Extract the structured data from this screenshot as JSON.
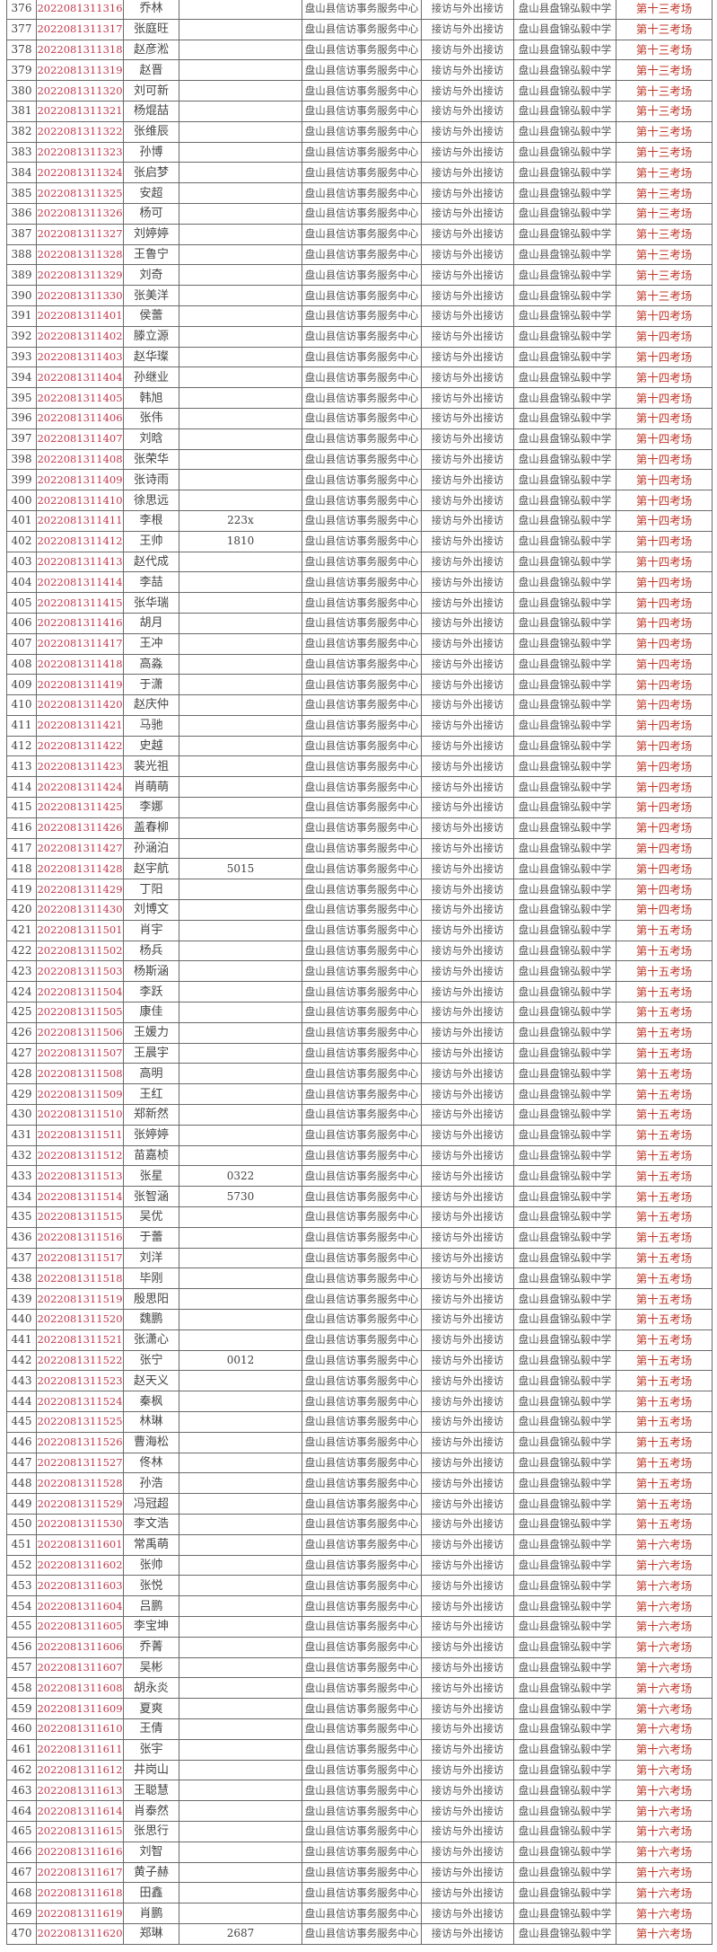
{
  "columns": [
    "no",
    "exam_id",
    "name",
    "extra",
    "unit",
    "position",
    "exam_site",
    "exam_room"
  ],
  "colors": {
    "exam_id": "#c23a4e",
    "exam_room": "#c0392b",
    "text": "#444444"
  },
  "rows": [
    [
      "376",
      "2022081311316",
      "乔林",
      "",
      "盘山县信访事务服务中心",
      "接访与外出接访",
      "盘山县盘锦弘毅中学",
      "第十三考场"
    ],
    [
      "377",
      "2022081311317",
      "张庭旺",
      "",
      "盘山县信访事务服务中心",
      "接访与外出接访",
      "盘山县盘锦弘毅中学",
      "第十三考场"
    ],
    [
      "378",
      "2022081311318",
      "赵彦淞",
      "",
      "盘山县信访事务服务中心",
      "接访与外出接访",
      "盘山县盘锦弘毅中学",
      "第十三考场"
    ],
    [
      "379",
      "2022081311319",
      "赵晋",
      "",
      "盘山县信访事务服务中心",
      "接访与外出接访",
      "盘山县盘锦弘毅中学",
      "第十三考场"
    ],
    [
      "380",
      "2022081311320",
      "刘可新",
      "",
      "盘山县信访事务服务中心",
      "接访与外出接访",
      "盘山县盘锦弘毅中学",
      "第十三考场"
    ],
    [
      "381",
      "2022081311321",
      "杨焜喆",
      "",
      "盘山县信访事务服务中心",
      "接访与外出接访",
      "盘山县盘锦弘毅中学",
      "第十三考场"
    ],
    [
      "382",
      "2022081311322",
      "张维辰",
      "",
      "盘山县信访事务服务中心",
      "接访与外出接访",
      "盘山县盘锦弘毅中学",
      "第十三考场"
    ],
    [
      "383",
      "2022081311323",
      "孙博",
      "",
      "盘山县信访事务服务中心",
      "接访与外出接访",
      "盘山县盘锦弘毅中学",
      "第十三考场"
    ],
    [
      "384",
      "2022081311324",
      "张启梦",
      "",
      "盘山县信访事务服务中心",
      "接访与外出接访",
      "盘山县盘锦弘毅中学",
      "第十三考场"
    ],
    [
      "385",
      "2022081311325",
      "安超",
      "",
      "盘山县信访事务服务中心",
      "接访与外出接访",
      "盘山县盘锦弘毅中学",
      "第十三考场"
    ],
    [
      "386",
      "2022081311326",
      "杨可",
      "",
      "盘山县信访事务服务中心",
      "接访与外出接访",
      "盘山县盘锦弘毅中学",
      "第十三考场"
    ],
    [
      "387",
      "2022081311327",
      "刘婷婷",
      "",
      "盘山县信访事务服务中心",
      "接访与外出接访",
      "盘山县盘锦弘毅中学",
      "第十三考场"
    ],
    [
      "388",
      "2022081311328",
      "王鲁宁",
      "",
      "盘山县信访事务服务中心",
      "接访与外出接访",
      "盘山县盘锦弘毅中学",
      "第十三考场"
    ],
    [
      "389",
      "2022081311329",
      "刘奇",
      "",
      "盘山县信访事务服务中心",
      "接访与外出接访",
      "盘山县盘锦弘毅中学",
      "第十三考场"
    ],
    [
      "390",
      "2022081311330",
      "张美洋",
      "",
      "盘山县信访事务服务中心",
      "接访与外出接访",
      "盘山县盘锦弘毅中学",
      "第十三考场"
    ],
    [
      "391",
      "2022081311401",
      "侯蕾",
      "",
      "盘山县信访事务服务中心",
      "接访与外出接访",
      "盘山县盘锦弘毅中学",
      "第十四考场"
    ],
    [
      "392",
      "2022081311402",
      "滕立源",
      "",
      "盘山县信访事务服务中心",
      "接访与外出接访",
      "盘山县盘锦弘毅中学",
      "第十四考场"
    ],
    [
      "393",
      "2022081311403",
      "赵华璨",
      "",
      "盘山县信访事务服务中心",
      "接访与外出接访",
      "盘山县盘锦弘毅中学",
      "第十四考场"
    ],
    [
      "394",
      "2022081311404",
      "孙继业",
      "",
      "盘山县信访事务服务中心",
      "接访与外出接访",
      "盘山县盘锦弘毅中学",
      "第十四考场"
    ],
    [
      "395",
      "2022081311405",
      "韩旭",
      "",
      "盘山县信访事务服务中心",
      "接访与外出接访",
      "盘山县盘锦弘毅中学",
      "第十四考场"
    ],
    [
      "396",
      "2022081311406",
      "张伟",
      "",
      "盘山县信访事务服务中心",
      "接访与外出接访",
      "盘山县盘锦弘毅中学",
      "第十四考场"
    ],
    [
      "397",
      "2022081311407",
      "刘晗",
      "",
      "盘山县信访事务服务中心",
      "接访与外出接访",
      "盘山县盘锦弘毅中学",
      "第十四考场"
    ],
    [
      "398",
      "2022081311408",
      "张荣华",
      "",
      "盘山县信访事务服务中心",
      "接访与外出接访",
      "盘山县盘锦弘毅中学",
      "第十四考场"
    ],
    [
      "399",
      "2022081311409",
      "张诗雨",
      "",
      "盘山县信访事务服务中心",
      "接访与外出接访",
      "盘山县盘锦弘毅中学",
      "第十四考场"
    ],
    [
      "400",
      "2022081311410",
      "徐思远",
      "",
      "盘山县信访事务服务中心",
      "接访与外出接访",
      "盘山县盘锦弘毅中学",
      "第十四考场"
    ],
    [
      "401",
      "2022081311411",
      "李根",
      "223x",
      "盘山县信访事务服务中心",
      "接访与外出接访",
      "盘山县盘锦弘毅中学",
      "第十四考场"
    ],
    [
      "402",
      "2022081311412",
      "王帅",
      "1810",
      "盘山县信访事务服务中心",
      "接访与外出接访",
      "盘山县盘锦弘毅中学",
      "第十四考场"
    ],
    [
      "403",
      "2022081311413",
      "赵代成",
      "",
      "盘山县信访事务服务中心",
      "接访与外出接访",
      "盘山县盘锦弘毅中学",
      "第十四考场"
    ],
    [
      "404",
      "2022081311414",
      "李喆",
      "",
      "盘山县信访事务服务中心",
      "接访与外出接访",
      "盘山县盘锦弘毅中学",
      "第十四考场"
    ],
    [
      "405",
      "2022081311415",
      "张华瑞",
      "",
      "盘山县信访事务服务中心",
      "接访与外出接访",
      "盘山县盘锦弘毅中学",
      "第十四考场"
    ],
    [
      "406",
      "2022081311416",
      "胡月",
      "",
      "盘山县信访事务服务中心",
      "接访与外出接访",
      "盘山县盘锦弘毅中学",
      "第十四考场"
    ],
    [
      "407",
      "2022081311417",
      "王冲",
      "",
      "盘山县信访事务服务中心",
      "接访与外出接访",
      "盘山县盘锦弘毅中学",
      "第十四考场"
    ],
    [
      "408",
      "2022081311418",
      "高淼",
      "",
      "盘山县信访事务服务中心",
      "接访与外出接访",
      "盘山县盘锦弘毅中学",
      "第十四考场"
    ],
    [
      "409",
      "2022081311419",
      "于潇",
      "",
      "盘山县信访事务服务中心",
      "接访与外出接访",
      "盘山县盘锦弘毅中学",
      "第十四考场"
    ],
    [
      "410",
      "2022081311420",
      "赵庆仲",
      "",
      "盘山县信访事务服务中心",
      "接访与外出接访",
      "盘山县盘锦弘毅中学",
      "第十四考场"
    ],
    [
      "411",
      "2022081311421",
      "马驰",
      "",
      "盘山县信访事务服务中心",
      "接访与外出接访",
      "盘山县盘锦弘毅中学",
      "第十四考场"
    ],
    [
      "412",
      "2022081311422",
      "史越",
      "",
      "盘山县信访事务服务中心",
      "接访与外出接访",
      "盘山县盘锦弘毅中学",
      "第十四考场"
    ],
    [
      "413",
      "2022081311423",
      "裴光祖",
      "",
      "盘山县信访事务服务中心",
      "接访与外出接访",
      "盘山县盘锦弘毅中学",
      "第十四考场"
    ],
    [
      "414",
      "2022081311424",
      "肖萌萌",
      "",
      "盘山县信访事务服务中心",
      "接访与外出接访",
      "盘山县盘锦弘毅中学",
      "第十四考场"
    ],
    [
      "415",
      "2022081311425",
      "李娜",
      "",
      "盘山县信访事务服务中心",
      "接访与外出接访",
      "盘山县盘锦弘毅中学",
      "第十四考场"
    ],
    [
      "416",
      "2022081311426",
      "盖春柳",
      "",
      "盘山县信访事务服务中心",
      "接访与外出接访",
      "盘山县盘锦弘毅中学",
      "第十四考场"
    ],
    [
      "417",
      "2022081311427",
      "孙涵泊",
      "",
      "盘山县信访事务服务中心",
      "接访与外出接访",
      "盘山县盘锦弘毅中学",
      "第十四考场"
    ],
    [
      "418",
      "2022081311428",
      "赵宇航",
      "5015",
      "盘山县信访事务服务中心",
      "接访与外出接访",
      "盘山县盘锦弘毅中学",
      "第十四考场"
    ],
    [
      "419",
      "2022081311429",
      "丁阳",
      "",
      "盘山县信访事务服务中心",
      "接访与外出接访",
      "盘山县盘锦弘毅中学",
      "第十四考场"
    ],
    [
      "420",
      "2022081311430",
      "刘博文",
      "",
      "盘山县信访事务服务中心",
      "接访与外出接访",
      "盘山县盘锦弘毅中学",
      "第十四考场"
    ],
    [
      "421",
      "2022081311501",
      "肖宇",
      "",
      "盘山县信访事务服务中心",
      "接访与外出接访",
      "盘山县盘锦弘毅中学",
      "第十五考场"
    ],
    [
      "422",
      "2022081311502",
      "杨兵",
      "",
      "盘山县信访事务服务中心",
      "接访与外出接访",
      "盘山县盘锦弘毅中学",
      "第十五考场"
    ],
    [
      "423",
      "2022081311503",
      "杨斯涵",
      "",
      "盘山县信访事务服务中心",
      "接访与外出接访",
      "盘山县盘锦弘毅中学",
      "第十五考场"
    ],
    [
      "424",
      "2022081311504",
      "李跃",
      "",
      "盘山县信访事务服务中心",
      "接访与外出接访",
      "盘山县盘锦弘毅中学",
      "第十五考场"
    ],
    [
      "425",
      "2022081311505",
      "康佳",
      "",
      "盘山县信访事务服务中心",
      "接访与外出接访",
      "盘山县盘锦弘毅中学",
      "第十五考场"
    ],
    [
      "426",
      "2022081311506",
      "王媛力",
      "",
      "盘山县信访事务服务中心",
      "接访与外出接访",
      "盘山县盘锦弘毅中学",
      "第十五考场"
    ],
    [
      "427",
      "2022081311507",
      "王晨宇",
      "",
      "盘山县信访事务服务中心",
      "接访与外出接访",
      "盘山县盘锦弘毅中学",
      "第十五考场"
    ],
    [
      "428",
      "2022081311508",
      "高明",
      "",
      "盘山县信访事务服务中心",
      "接访与外出接访",
      "盘山县盘锦弘毅中学",
      "第十五考场"
    ],
    [
      "429",
      "2022081311509",
      "王红",
      "",
      "盘山县信访事务服务中心",
      "接访与外出接访",
      "盘山县盘锦弘毅中学",
      "第十五考场"
    ],
    [
      "430",
      "2022081311510",
      "郑新然",
      "",
      "盘山县信访事务服务中心",
      "接访与外出接访",
      "盘山县盘锦弘毅中学",
      "第十五考场"
    ],
    [
      "431",
      "2022081311511",
      "张婷婷",
      "",
      "盘山县信访事务服务中心",
      "接访与外出接访",
      "盘山县盘锦弘毅中学",
      "第十五考场"
    ],
    [
      "432",
      "2022081311512",
      "苗嘉桢",
      "",
      "盘山县信访事务服务中心",
      "接访与外出接访",
      "盘山县盘锦弘毅中学",
      "第十五考场"
    ],
    [
      "433",
      "2022081311513",
      "张星",
      "0322",
      "盘山县信访事务服务中心",
      "接访与外出接访",
      "盘山县盘锦弘毅中学",
      "第十五考场"
    ],
    [
      "434",
      "2022081311514",
      "张智涵",
      "5730",
      "盘山县信访事务服务中心",
      "接访与外出接访",
      "盘山县盘锦弘毅中学",
      "第十五考场"
    ],
    [
      "435",
      "2022081311515",
      "吴优",
      "",
      "盘山县信访事务服务中心",
      "接访与外出接访",
      "盘山县盘锦弘毅中学",
      "第十五考场"
    ],
    [
      "436",
      "2022081311516",
      "于蕾",
      "",
      "盘山县信访事务服务中心",
      "接访与外出接访",
      "盘山县盘锦弘毅中学",
      "第十五考场"
    ],
    [
      "437",
      "2022081311517",
      "刘洋",
      "",
      "盘山县信访事务服务中心",
      "接访与外出接访",
      "盘山县盘锦弘毅中学",
      "第十五考场"
    ],
    [
      "438",
      "2022081311518",
      "毕刚",
      "",
      "盘山县信访事务服务中心",
      "接访与外出接访",
      "盘山县盘锦弘毅中学",
      "第十五考场"
    ],
    [
      "439",
      "2022081311519",
      "殷思阳",
      "",
      "盘山县信访事务服务中心",
      "接访与外出接访",
      "盘山县盘锦弘毅中学",
      "第十五考场"
    ],
    [
      "440",
      "2022081311520",
      "魏鹏",
      "",
      "盘山县信访事务服务中心",
      "接访与外出接访",
      "盘山县盘锦弘毅中学",
      "第十五考场"
    ],
    [
      "441",
      "2022081311521",
      "张潇心",
      "",
      "盘山县信访事务服务中心",
      "接访与外出接访",
      "盘山县盘锦弘毅中学",
      "第十五考场"
    ],
    [
      "442",
      "2022081311522",
      "张宁",
      "0012",
      "盘山县信访事务服务中心",
      "接访与外出接访",
      "盘山县盘锦弘毅中学",
      "第十五考场"
    ],
    [
      "443",
      "2022081311523",
      "赵天义",
      "",
      "盘山县信访事务服务中心",
      "接访与外出接访",
      "盘山县盘锦弘毅中学",
      "第十五考场"
    ],
    [
      "444",
      "2022081311524",
      "秦枫",
      "",
      "盘山县信访事务服务中心",
      "接访与外出接访",
      "盘山县盘锦弘毅中学",
      "第十五考场"
    ],
    [
      "445",
      "2022081311525",
      "林琳",
      "",
      "盘山县信访事务服务中心",
      "接访与外出接访",
      "盘山县盘锦弘毅中学",
      "第十五考场"
    ],
    [
      "446",
      "2022081311526",
      "曹海松",
      "",
      "盘山县信访事务服务中心",
      "接访与外出接访",
      "盘山县盘锦弘毅中学",
      "第十五考场"
    ],
    [
      "447",
      "2022081311527",
      "佟林",
      "",
      "盘山县信访事务服务中心",
      "接访与外出接访",
      "盘山县盘锦弘毅中学",
      "第十五考场"
    ],
    [
      "448",
      "2022081311528",
      "孙浩",
      "",
      "盘山县信访事务服务中心",
      "接访与外出接访",
      "盘山县盘锦弘毅中学",
      "第十五考场"
    ],
    [
      "449",
      "2022081311529",
      "冯冠超",
      "",
      "盘山县信访事务服务中心",
      "接访与外出接访",
      "盘山县盘锦弘毅中学",
      "第十五考场"
    ],
    [
      "450",
      "2022081311530",
      "李文浩",
      "",
      "盘山县信访事务服务中心",
      "接访与外出接访",
      "盘山县盘锦弘毅中学",
      "第十五考场"
    ],
    [
      "451",
      "2022081311601",
      "常禹萌",
      "",
      "盘山县信访事务服务中心",
      "接访与外出接访",
      "盘山县盘锦弘毅中学",
      "第十六考场"
    ],
    [
      "452",
      "2022081311602",
      "张帅",
      "",
      "盘山县信访事务服务中心",
      "接访与外出接访",
      "盘山县盘锦弘毅中学",
      "第十六考场"
    ],
    [
      "453",
      "2022081311603",
      "张悦",
      "",
      "盘山县信访事务服务中心",
      "接访与外出接访",
      "盘山县盘锦弘毅中学",
      "第十六考场"
    ],
    [
      "454",
      "2022081311604",
      "吕鹏",
      "",
      "盘山县信访事务服务中心",
      "接访与外出接访",
      "盘山县盘锦弘毅中学",
      "第十六考场"
    ],
    [
      "455",
      "2022081311605",
      "李宝坤",
      "",
      "盘山县信访事务服务中心",
      "接访与外出接访",
      "盘山县盘锦弘毅中学",
      "第十六考场"
    ],
    [
      "456",
      "2022081311606",
      "乔菁",
      "",
      "盘山县信访事务服务中心",
      "接访与外出接访",
      "盘山县盘锦弘毅中学",
      "第十六考场"
    ],
    [
      "457",
      "2022081311607",
      "吴彬",
      "",
      "盘山县信访事务服务中心",
      "接访与外出接访",
      "盘山县盘锦弘毅中学",
      "第十六考场"
    ],
    [
      "458",
      "2022081311608",
      "胡永炎",
      "",
      "盘山县信访事务服务中心",
      "接访与外出接访",
      "盘山县盘锦弘毅中学",
      "第十六考场"
    ],
    [
      "459",
      "2022081311609",
      "夏爽",
      "",
      "盘山县信访事务服务中心",
      "接访与外出接访",
      "盘山县盘锦弘毅中学",
      "第十六考场"
    ],
    [
      "460",
      "2022081311610",
      "王倩",
      "",
      "盘山县信访事务服务中心",
      "接访与外出接访",
      "盘山县盘锦弘毅中学",
      "第十六考场"
    ],
    [
      "461",
      "2022081311611",
      "张宇",
      "",
      "盘山县信访事务服务中心",
      "接访与外出接访",
      "盘山县盘锦弘毅中学",
      "第十六考场"
    ],
    [
      "462",
      "2022081311612",
      "井岗山",
      "",
      "盘山县信访事务服务中心",
      "接访与外出接访",
      "盘山县盘锦弘毅中学",
      "第十六考场"
    ],
    [
      "463",
      "2022081311613",
      "王聪慧",
      "",
      "盘山县信访事务服务中心",
      "接访与外出接访",
      "盘山县盘锦弘毅中学",
      "第十六考场"
    ],
    [
      "464",
      "2022081311614",
      "肖泰然",
      "",
      "盘山县信访事务服务中心",
      "接访与外出接访",
      "盘山县盘锦弘毅中学",
      "第十六考场"
    ],
    [
      "465",
      "2022081311615",
      "张思行",
      "",
      "盘山县信访事务服务中心",
      "接访与外出接访",
      "盘山县盘锦弘毅中学",
      "第十六考场"
    ],
    [
      "466",
      "2022081311616",
      "刘智",
      "",
      "盘山县信访事务服务中心",
      "接访与外出接访",
      "盘山县盘锦弘毅中学",
      "第十六考场"
    ],
    [
      "467",
      "2022081311617",
      "黄子赫",
      "",
      "盘山县信访事务服务中心",
      "接访与外出接访",
      "盘山县盘锦弘毅中学",
      "第十六考场"
    ],
    [
      "468",
      "2022081311618",
      "田鑫",
      "",
      "盘山县信访事务服务中心",
      "接访与外出接访",
      "盘山县盘锦弘毅中学",
      "第十六考场"
    ],
    [
      "469",
      "2022081311619",
      "肖鹏",
      "",
      "盘山县信访事务服务中心",
      "接访与外出接访",
      "盘山县盘锦弘毅中学",
      "第十六考场"
    ],
    [
      "470",
      "2022081311620",
      "郑琳",
      "2687",
      "盘山县信访事务服务中心",
      "接访与外出接访",
      "盘山县盘锦弘毅中学",
      "第十六考场"
    ]
  ]
}
